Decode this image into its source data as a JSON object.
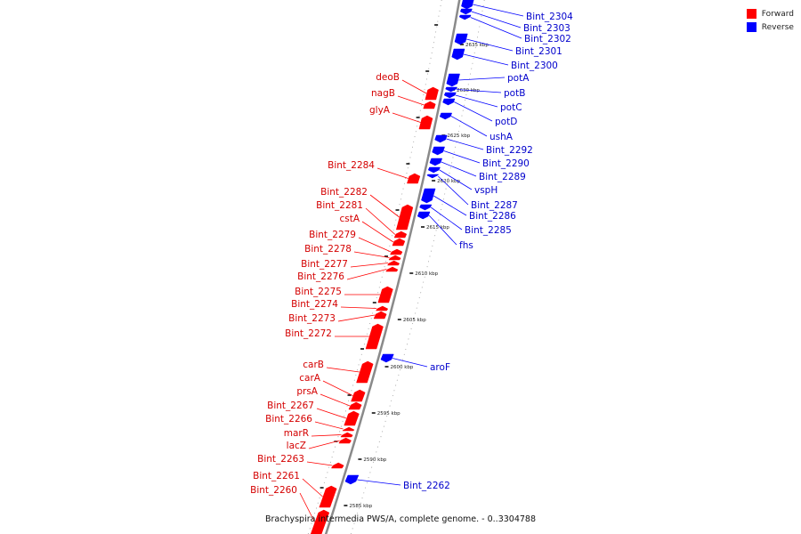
{
  "caption": "Brachyspira intermedia PWS/A, complete genome. - 0..3304788",
  "legend": {
    "forward_label": "Forward",
    "reverse_label": "Reverse",
    "forward_color": "#ff0000",
    "reverse_color": "#0000ff"
  },
  "colors": {
    "backbone": "#8a8a8a",
    "label_text_fwd": "#d40000",
    "label_text_rev": "#0000cc"
  },
  "ticks": [
    {
      "label": "2585 kbp"
    },
    {
      "label": "2590 kbp"
    },
    {
      "label": "2595 kbp"
    },
    {
      "label": "2600 kbp"
    },
    {
      "label": "2605 kbp"
    },
    {
      "label": "2610 kbp"
    },
    {
      "label": "2615 kbp"
    },
    {
      "label": "2620 kbp"
    },
    {
      "label": "2625 kbp"
    },
    {
      "label": "2630 kbp"
    },
    {
      "label": "2635 kbp"
    }
  ],
  "forward_genes": [
    "deoB",
    "nagB",
    "glyA",
    "Bint_2284",
    "Bint_2282",
    "Bint_2281",
    "cstA",
    "Bint_2279",
    "Bint_2278",
    "Bint_2277",
    "Bint_2276",
    "Bint_2275",
    "Bint_2274",
    "Bint_2273",
    "Bint_2272",
    "carB",
    "carA",
    "prsA",
    "Bint_2267",
    "Bint_2266",
    "marR",
    "lacZ",
    "Bint_2263",
    "Bint_2261",
    "Bint_2260"
  ],
  "reverse_genes": [
    "Bint_2304",
    "Bint_2303",
    "Bint_2302",
    "Bint_2301",
    "Bint_2300",
    "potA",
    "potB",
    "potC",
    "potD",
    "ushA",
    "Bint_2292",
    "Bint_2290",
    "Bint_2289",
    "vspH",
    "Bint_2287",
    "Bint_2286",
    "Bint_2285",
    "fhs",
    "aroF",
    "Bint_2262"
  ]
}
